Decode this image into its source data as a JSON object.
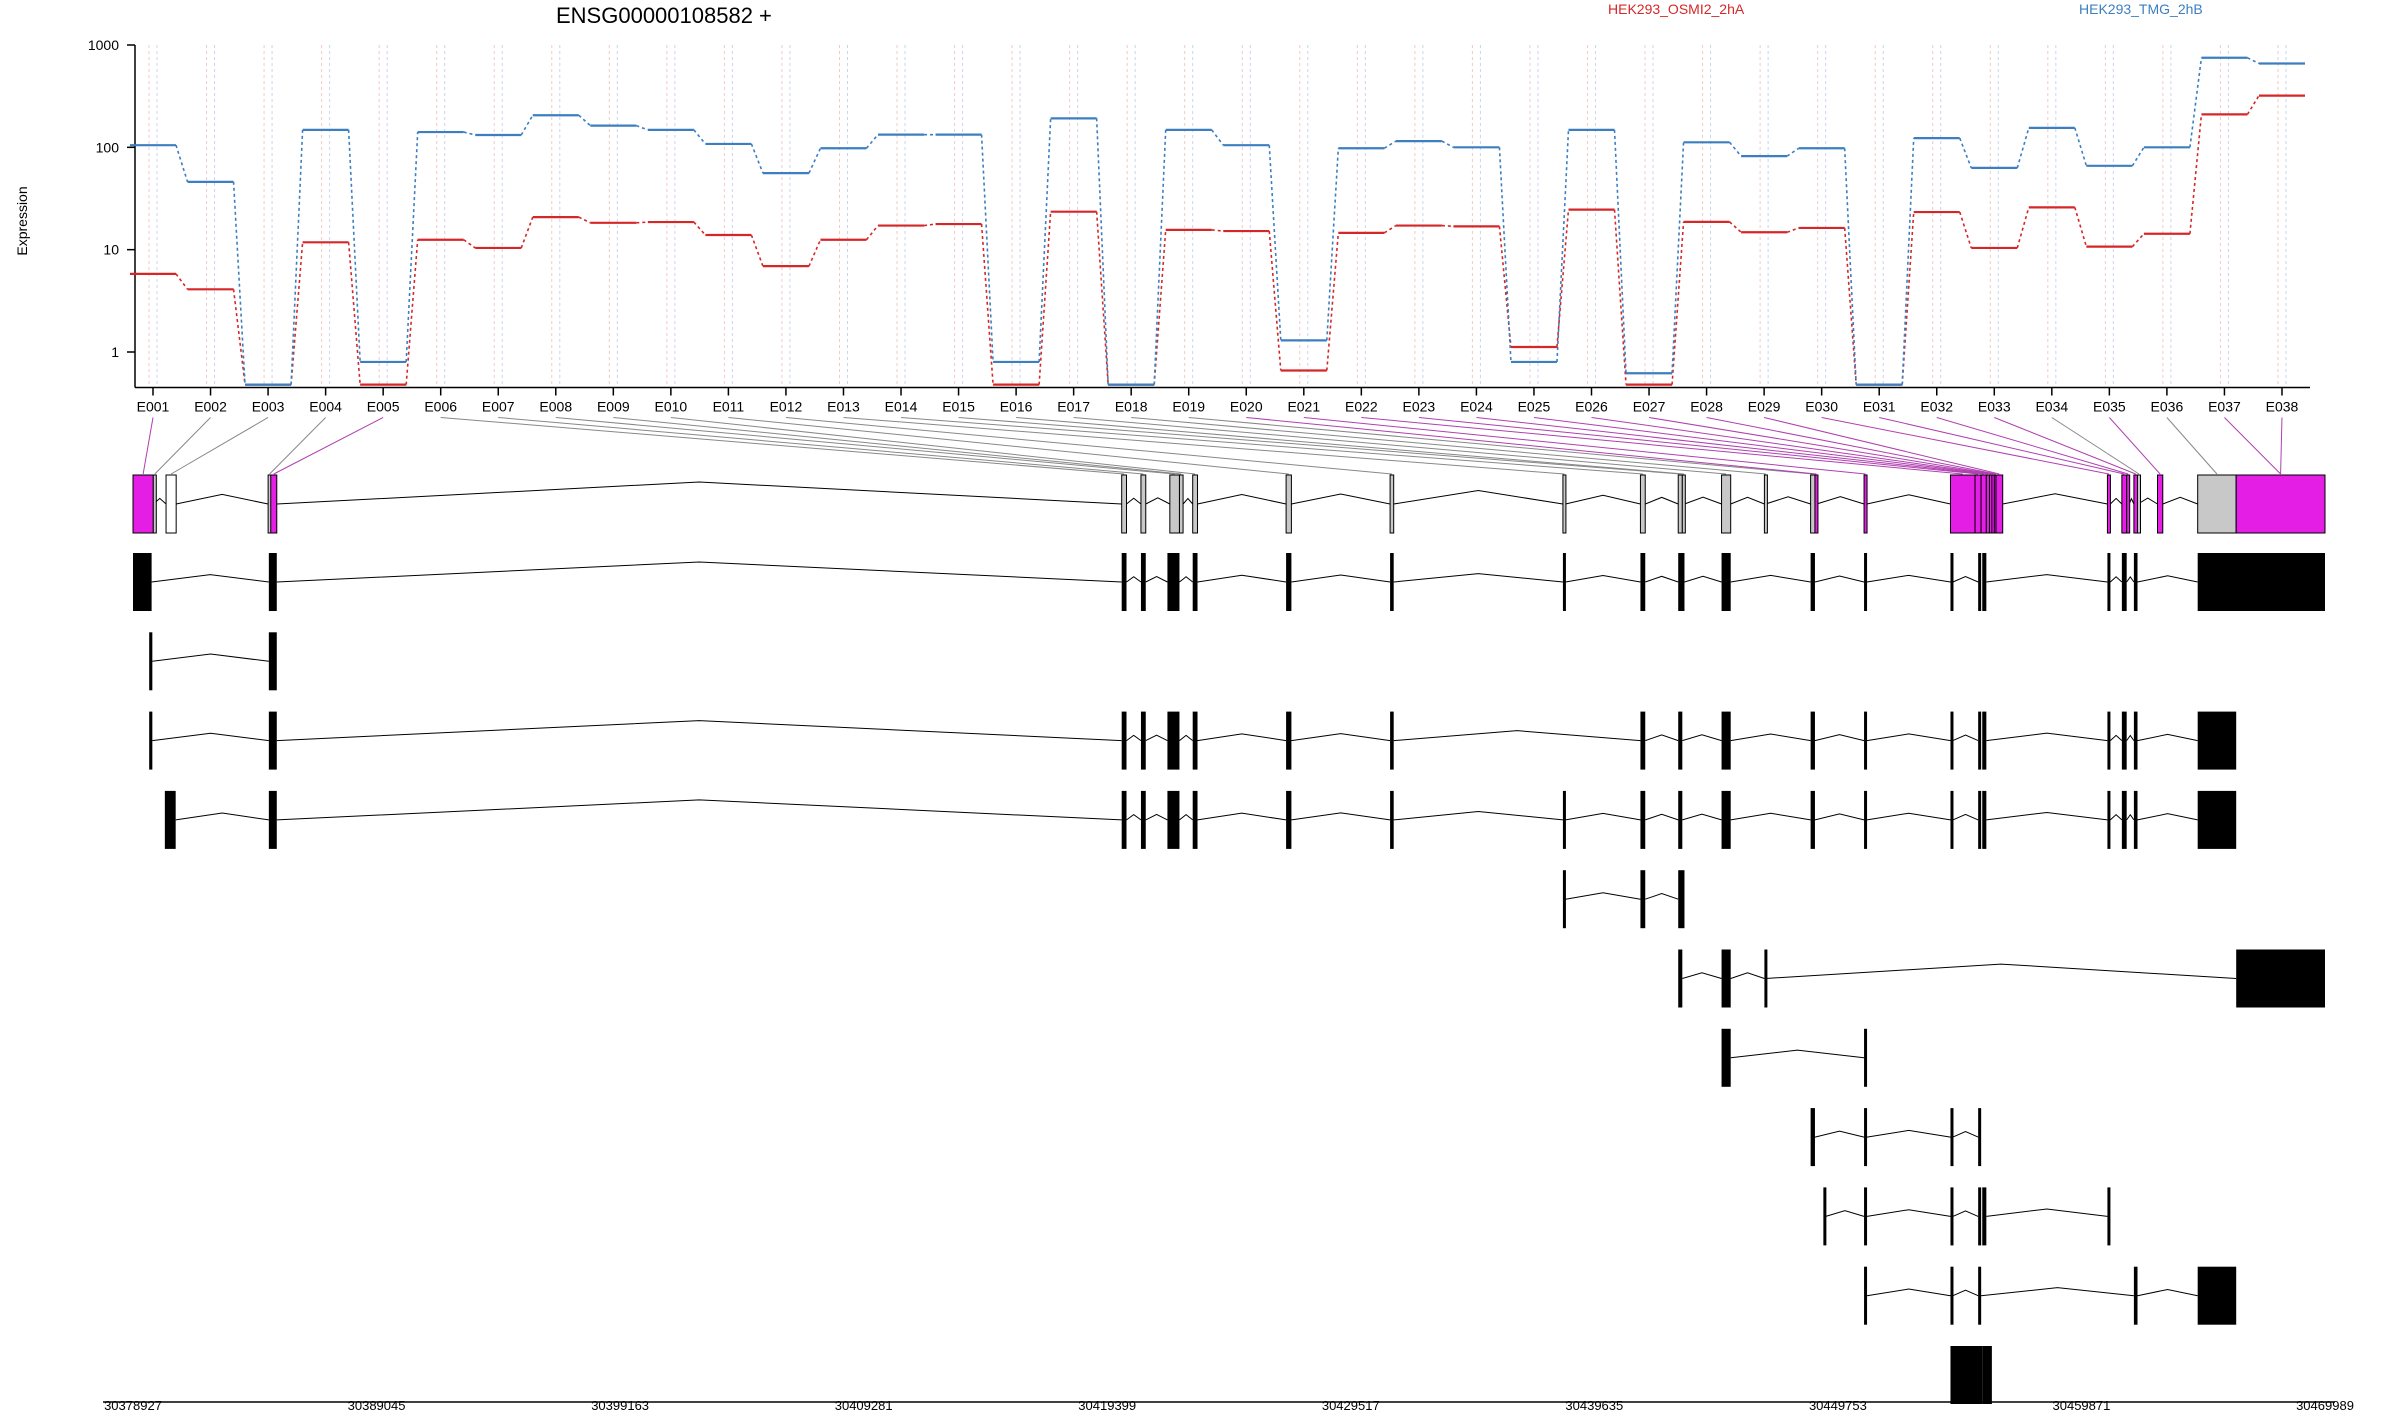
{
  "colors": {
    "series1": "#d62728",
    "series2": "#3c7fc0",
    "highlight": "#e51ee5",
    "grey": "#c8c8c8",
    "grid_a": "#f2c8c8",
    "grid_b": "#c8d4f0"
  },
  "chart_data": {
    "type": "line",
    "title": "ENSG00000108582 +",
    "ylabel": "Expression",
    "yscale": "log",
    "ylim": [
      0.45,
      1000
    ],
    "yticks": [
      {
        "value": 1,
        "label": "1"
      },
      {
        "value": 10,
        "label": "10"
      },
      {
        "value": 100,
        "label": "100"
      },
      {
        "value": 1000,
        "label": "1000"
      }
    ],
    "categories": [
      "E001",
      "E002",
      "E003",
      "E004",
      "E005",
      "E006",
      "E007",
      "E008",
      "E009",
      "E010",
      "E011",
      "E012",
      "E013",
      "E014",
      "E015",
      "E016",
      "E017",
      "E018",
      "E019",
      "E020",
      "E021",
      "E022",
      "E023",
      "E024",
      "E025",
      "E026",
      "E027",
      "E028",
      "E029",
      "E030",
      "E031",
      "E032",
      "E033",
      "E034",
      "E035",
      "E036",
      "E037",
      "E038"
    ],
    "series": [
      {
        "name": "HEK293_OSMI2_2hA",
        "color": "#d62728",
        "values": [
          5.8,
          4.1,
          0.48,
          11.8,
          0.48,
          12.5,
          10.4,
          20.8,
          18.3,
          18.6,
          13.9,
          6.9,
          12.5,
          17.2,
          17.8,
          0.48,
          23.5,
          0.48,
          15.6,
          15.2,
          0.66,
          14.6,
          17.2,
          16.9,
          1.12,
          24.6,
          0.48,
          18.7,
          14.8,
          16.3,
          0.48,
          23.3,
          10.4,
          25.9,
          10.7,
          14.3,
          210,
          320
        ]
      },
      {
        "name": "HEK293_TMG_2hB",
        "color": "#3c7fc0",
        "values": [
          105,
          46,
          0.48,
          148,
          0.8,
          141,
          132,
          206,
          163,
          148,
          108,
          56,
          98,
          133,
          133,
          0.8,
          192,
          0.48,
          148,
          105,
          1.3,
          98,
          115,
          100,
          0.8,
          148,
          0.62,
          112,
          82,
          98,
          0.48,
          123,
          63,
          155,
          66,
          100,
          750,
          660
        ]
      }
    ],
    "genome_axis": {
      "tick_labels": [
        "30378927",
        "30389045",
        "30399163",
        "30409281",
        "30419399",
        "30429517",
        "30439635",
        "30449753",
        "30459871",
        "30469989"
      ]
    }
  },
  "exon_colors": [
    "h",
    "g",
    "w",
    "g",
    "h",
    "g",
    "g",
    "g",
    "g",
    "g",
    "g",
    "g",
    "g",
    "g",
    "g",
    "g",
    "g",
    "g",
    "g",
    "h",
    "h",
    "h",
    "h",
    "h",
    "h",
    "h",
    "h",
    "h",
    "h",
    "h",
    "h",
    "h",
    "h",
    "g",
    "h",
    "g",
    "h",
    "h"
  ],
  "exons_genomic": [
    [
      30378927,
      30379770
    ],
    [
      30379770,
      30379780
    ],
    [
      30380300,
      30380720
    ],
    [
      30384540,
      30384650
    ],
    [
      30384650,
      30384900
    ],
    [
      30420000,
      30420200
    ],
    [
      30420800,
      30421000
    ],
    [
      30422000,
      30422400
    ],
    [
      30422400,
      30422550
    ],
    [
      30422950,
      30423150
    ],
    [
      30426830,
      30427050
    ],
    [
      30431150,
      30431300
    ],
    [
      30438330,
      30438440
    ],
    [
      30441550,
      30441750
    ],
    [
      30443120,
      30443290
    ],
    [
      30443290,
      30443380
    ],
    [
      30444920,
      30445300
    ],
    [
      30446700,
      30446750
    ],
    [
      30448620,
      30448800
    ],
    [
      30448800,
      30448870
    ],
    [
      30450840,
      30450960
    ],
    [
      30454430,
      30455450
    ],
    [
      30455450,
      30455700
    ],
    [
      30455700,
      30455920
    ],
    [
      30455920,
      30456050
    ],
    [
      30456050,
      30456150
    ],
    [
      30456150,
      30456250
    ],
    [
      30456250,
      30456320
    ],
    [
      30456320,
      30456600
    ],
    [
      30460950,
      30461070
    ],
    [
      30461550,
      30461750
    ],
    [
      30461750,
      30461850
    ],
    [
      30462050,
      30462200
    ],
    [
      30462200,
      30462220
    ],
    [
      30463030,
      30463250
    ],
    [
      30464700,
      30466300
    ],
    [
      30466300,
      30469989
    ],
    [
      30466300,
      30469989
    ]
  ],
  "transcripts": [
    [
      [
        30378927,
        30379700
      ],
      [
        30384570,
        30384900
      ],
      [
        30420000,
        30420200
      ],
      [
        30420800,
        30421000
      ],
      [
        30421900,
        30422400
      ],
      [
        30422950,
        30423150
      ],
      [
        30426830,
        30427050
      ],
      [
        30431150,
        30431300
      ],
      [
        30438330,
        30438440
      ],
      [
        30441550,
        30441750
      ],
      [
        30443120,
        30443380
      ],
      [
        30444920,
        30445300
      ],
      [
        30448620,
        30448800
      ],
      [
        30450840,
        30450960
      ],
      [
        30454430,
        30454530
      ],
      [
        30455580,
        30455700
      ],
      [
        30455750,
        30455920
      ],
      [
        30460950,
        30461070
      ],
      [
        30461550,
        30461750
      ],
      [
        30462050,
        30462200
      ],
      [
        30464700,
        30469989
      ]
    ],
    [
      [
        30379600,
        30379730
      ],
      [
        30384570,
        30384900
      ]
    ],
    [
      [
        30379600,
        30379730
      ],
      [
        30384570,
        30384900
      ],
      [
        30420000,
        30420200
      ],
      [
        30420800,
        30421000
      ],
      [
        30421900,
        30422400
      ],
      [
        30422950,
        30423150
      ],
      [
        30426830,
        30427050
      ],
      [
        30431150,
        30431300
      ],
      [
        30441550,
        30441750
      ],
      [
        30443120,
        30443290
      ],
      [
        30444920,
        30445300
      ],
      [
        30448620,
        30448800
      ],
      [
        30450840,
        30450960
      ],
      [
        30454430,
        30454530
      ],
      [
        30455580,
        30455700
      ],
      [
        30455750,
        30455920
      ],
      [
        30460950,
        30461070
      ],
      [
        30461550,
        30461750
      ],
      [
        30462050,
        30462200
      ],
      [
        30464700,
        30466300
      ]
    ],
    [
      [
        30380250,
        30380700
      ],
      [
        30384570,
        30384900
      ],
      [
        30420000,
        30420200
      ],
      [
        30420800,
        30421000
      ],
      [
        30421900,
        30422400
      ],
      [
        30422950,
        30423150
      ],
      [
        30426830,
        30427050
      ],
      [
        30431150,
        30431300
      ],
      [
        30438330,
        30438440
      ],
      [
        30441550,
        30441750
      ],
      [
        30443120,
        30443290
      ],
      [
        30444920,
        30445300
      ],
      [
        30448620,
        30448800
      ],
      [
        30450840,
        30450960
      ],
      [
        30454430,
        30454530
      ],
      [
        30455580,
        30455700
      ],
      [
        30455750,
        30455920
      ],
      [
        30460950,
        30461070
      ],
      [
        30461550,
        30461750
      ],
      [
        30462050,
        30462200
      ],
      [
        30464700,
        30466300
      ]
    ],
    [
      [
        30438330,
        30438440
      ],
      [
        30441550,
        30441750
      ],
      [
        30443120,
        30443380
      ]
    ],
    [
      [
        30443120,
        30443290
      ],
      [
        30444920,
        30445300
      ],
      [
        30446700,
        30446750
      ],
      [
        30466300,
        30469989
      ]
    ],
    [
      [
        30444920,
        30445300
      ],
      [
        30450840,
        30450960
      ]
    ],
    [
      [
        30448620,
        30448800
      ],
      [
        30450840,
        30450960
      ],
      [
        30454430,
        30454530
      ],
      [
        30455580,
        30455700
      ]
    ],
    [
      [
        30449150,
        30449250
      ],
      [
        30450840,
        30450960
      ],
      [
        30454430,
        30454530
      ],
      [
        30455580,
        30455700
      ],
      [
        30455750,
        30455920
      ],
      [
        30460950,
        30461070
      ]
    ],
    [
      [
        30450840,
        30450960
      ],
      [
        30454430,
        30454530
      ],
      [
        30455580,
        30455700
      ],
      [
        30462050,
        30462200
      ],
      [
        30464700,
        30466300
      ]
    ],
    [
      [
        30454430,
        30455750
      ],
      [
        30455750,
        30456150
      ]
    ]
  ]
}
